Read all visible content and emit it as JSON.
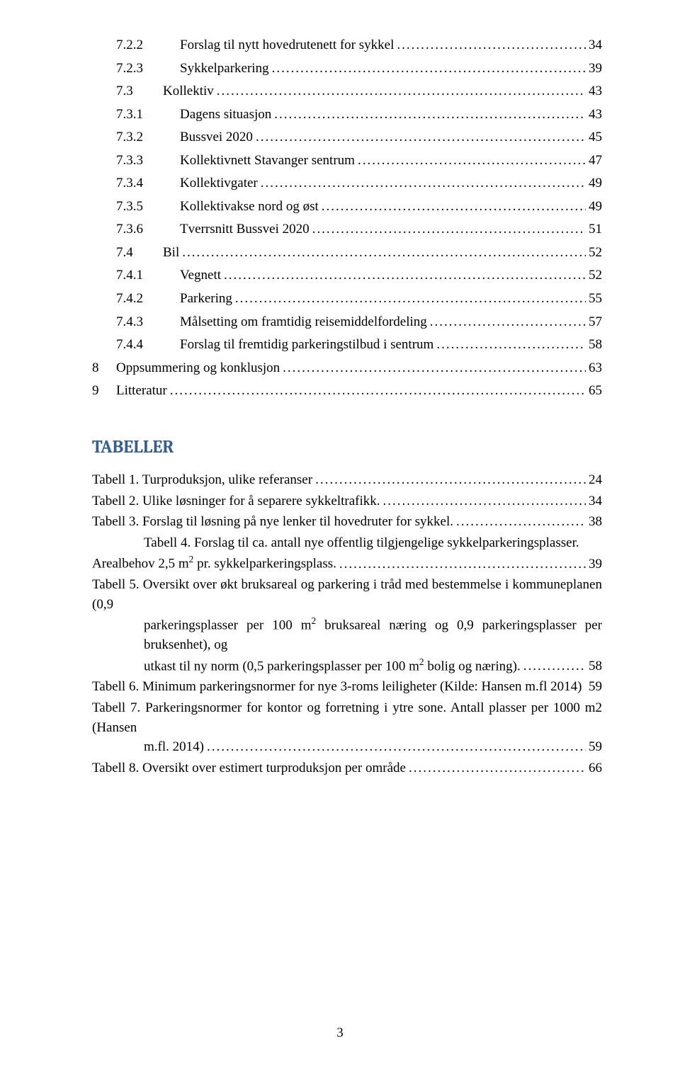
{
  "toc": [
    {
      "indent": 2,
      "num": "7.2.2",
      "title": "Forslag til nytt hovedrutenett for sykkel",
      "page": "34"
    },
    {
      "indent": 2,
      "num": "7.2.3",
      "title": "Sykkelparkering",
      "page": "39"
    },
    {
      "indent": 1,
      "num": "7.3",
      "title": "Kollektiv",
      "page": "43"
    },
    {
      "indent": 2,
      "num": "7.3.1",
      "title": "Dagens situasjon",
      "page": "43"
    },
    {
      "indent": 2,
      "num": "7.3.2",
      "title": "Bussvei 2020",
      "page": "45"
    },
    {
      "indent": 2,
      "num": "7.3.3",
      "title": "Kollektivnett Stavanger sentrum",
      "page": "47"
    },
    {
      "indent": 2,
      "num": "7.3.4",
      "title": "Kollektivgater",
      "page": "49"
    },
    {
      "indent": 2,
      "num": "7.3.5",
      "title": "Kollektivakse nord og øst",
      "page": "49"
    },
    {
      "indent": 2,
      "num": "7.3.6",
      "title": "Tverrsnitt Bussvei 2020",
      "page": "51"
    },
    {
      "indent": 1,
      "num": "7.4",
      "title": "Bil",
      "page": "52"
    },
    {
      "indent": 2,
      "num": "7.4.1",
      "title": "Vegnett",
      "page": "52"
    },
    {
      "indent": 2,
      "num": "7.4.2",
      "title": "Parkering",
      "page": "55"
    },
    {
      "indent": 2,
      "num": "7.4.3",
      "title": "Målsetting om framtidig reisemiddelfordeling",
      "page": "57"
    },
    {
      "indent": 2,
      "num": "7.4.4",
      "title": "Forslag til fremtidig parkeringstilbud i sentrum",
      "page": "58"
    },
    {
      "indent": 0,
      "num": "8",
      "title": "Oppsummering og konklusjon",
      "page": "63"
    },
    {
      "indent": 0,
      "num": "9",
      "title": "Litteratur",
      "page": "65"
    }
  ],
  "tables_header": "TABELLER",
  "tables": [
    {
      "lines": [
        "Tabell 1. Turproduksjon, ulike referanser"
      ],
      "page": "24",
      "style": "simple"
    },
    {
      "lines": [
        "Tabell 2. Ulike løsninger for å separere sykkeltrafikk."
      ],
      "page": "34",
      "style": "simple"
    },
    {
      "lines": [
        "Tabell 3. Forslag til løsning på nye lenker til hovedruter for sykkel."
      ],
      "page": "38",
      "style": "simple"
    },
    {
      "lines": [
        "Tabell 4. Forslag til ca. antall nye offentlig tilgjengelige sykkelparkeringsplasser.",
        "Arealbehov 2,5 m<sup>2</sup> pr. sykkelparkeringsplass."
      ],
      "page": "39",
      "style": "indent-first"
    },
    {
      "lines": [
        "Tabell 5. Oversikt over økt bruksareal og parkering i tråd med bestemmelse i kommuneplanen (0,9",
        "parkeringsplasser per 100 m<sup>2</sup> bruksareal næring og 0,9 parkeringsplasser per bruksenhet), og",
        "utkast til ny norm (0,5 parkeringsplasser per 100 m<sup>2</sup> bolig og næring)."
      ],
      "page": "58",
      "style": "hang"
    },
    {
      "lines": [
        "Tabell 6. Minimum parkeringsnormer for nye 3-roms leiligheter (Kilde: Hansen m.fl 2014)"
      ],
      "page": "59",
      "style": "simple"
    },
    {
      "lines": [
        "Tabell 7. Parkeringsnormer for kontor og forretning i ytre sone. Antall plasser per 1000 m2 (Hansen",
        "m.fl. 2014)"
      ],
      "page": "59",
      "style": "hang"
    },
    {
      "lines": [
        "Tabell 8. Oversikt over estimert turproduksjon per område"
      ],
      "page": "66",
      "style": "simple"
    }
  ],
  "page_number": "3",
  "colors": {
    "header": "#365f91",
    "text": "#000000",
    "bg": "#ffffff"
  }
}
